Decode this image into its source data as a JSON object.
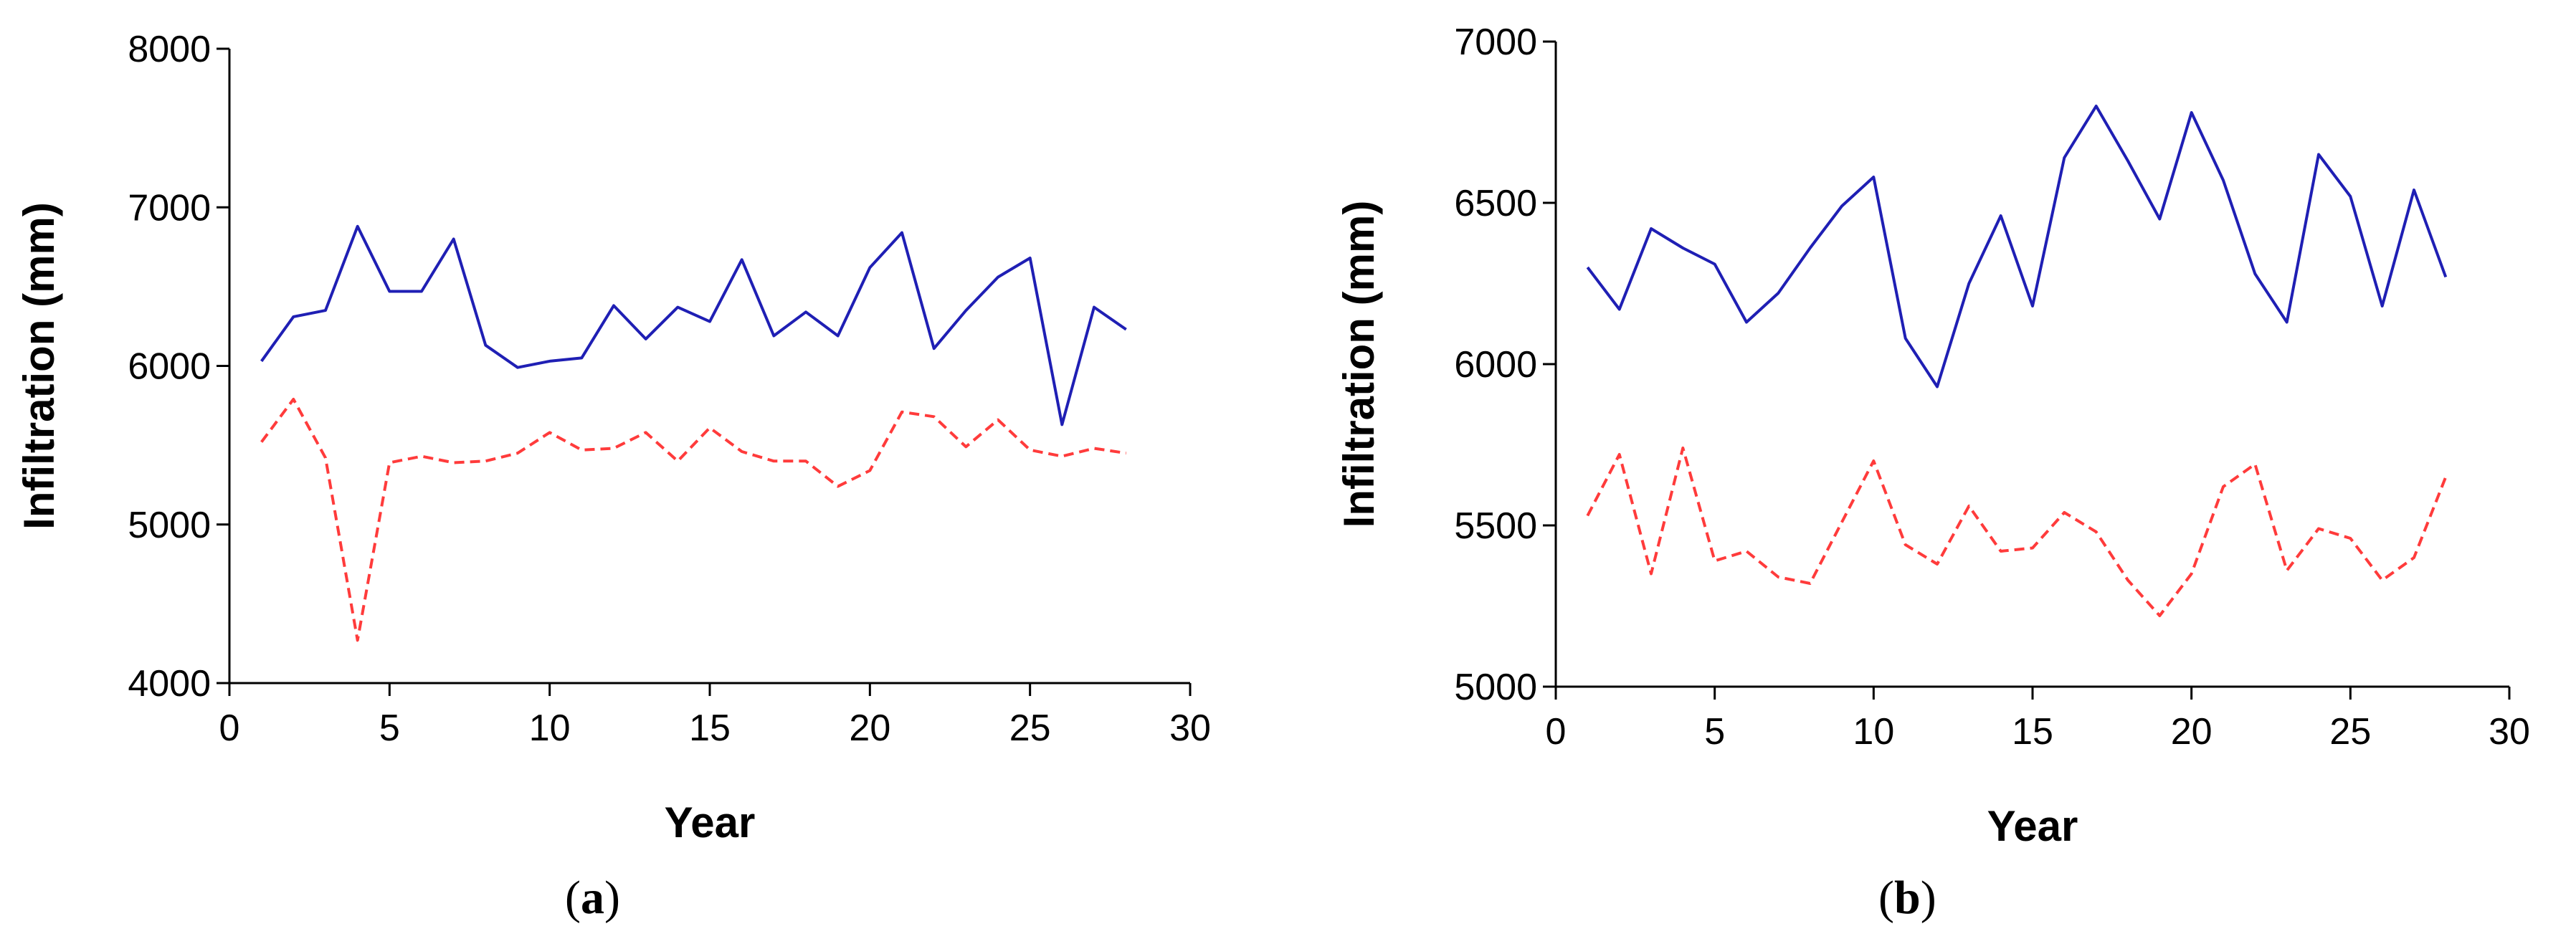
{
  "chart_data": [
    {
      "type": "line",
      "panel_label": "a",
      "xlabel": "Year",
      "ylabel": "Infiltration (mm)",
      "xlim": [
        0,
        30
      ],
      "ylim": [
        4000,
        8000
      ],
      "xticks": [
        0,
        5,
        10,
        15,
        20,
        25,
        30
      ],
      "yticks": [
        4000,
        5000,
        6000,
        7000,
        8000
      ],
      "grid": false,
      "x": [
        1,
        2,
        3,
        4,
        5,
        6,
        7,
        8,
        9,
        10,
        11,
        12,
        13,
        14,
        15,
        16,
        17,
        18,
        19,
        20,
        21,
        22,
        23,
        24,
        25,
        26,
        27,
        28
      ],
      "series": [
        {
          "color": "#1f1fb4",
          "style": "solid",
          "values": [
            6030,
            6310,
            6350,
            6880,
            6470,
            6470,
            6800,
            6130,
            5990,
            6030,
            6050,
            6380,
            6170,
            6370,
            6280,
            6670,
            6190,
            6340,
            6190,
            6620,
            6840,
            6110,
            6350,
            6560,
            6680,
            5630,
            6370,
            6230
          ]
        },
        {
          "color": "#ff3b3b",
          "style": "dashed",
          "values": [
            5520,
            5790,
            5420,
            4270,
            5390,
            5430,
            5390,
            5400,
            5450,
            5580,
            5470,
            5480,
            5580,
            5400,
            5610,
            5460,
            5400,
            5400,
            5240,
            5340,
            5710,
            5680,
            5490,
            5660,
            5470,
            5430,
            5480,
            5450
          ]
        }
      ]
    },
    {
      "type": "line",
      "panel_label": "b",
      "xlabel": "Year",
      "ylabel": "Infiltration (mm)",
      "xlim": [
        0,
        30
      ],
      "ylim": [
        5000,
        7000
      ],
      "xticks": [
        0,
        5,
        10,
        15,
        20,
        25,
        30
      ],
      "yticks": [
        5000,
        5500,
        6000,
        6500,
        7000
      ],
      "grid": false,
      "x": [
        1,
        2,
        3,
        4,
        5,
        6,
        7,
        8,
        9,
        10,
        11,
        12,
        13,
        14,
        15,
        16,
        17,
        18,
        19,
        20,
        21,
        22,
        23,
        24,
        25,
        26,
        27,
        28
      ],
      "series": [
        {
          "color": "#1f1fb4",
          "style": "solid",
          "values": [
            6300,
            6170,
            6420,
            6360,
            6310,
            6130,
            6220,
            6360,
            6490,
            6580,
            6080,
            5930,
            6250,
            6460,
            6180,
            6640,
            6800,
            6630,
            6450,
            6780,
            6570,
            6280,
            6130,
            6650,
            6520,
            6180,
            6540,
            6270
          ]
        },
        {
          "color": "#ff3b3b",
          "style": "dashed",
          "values": [
            5530,
            5720,
            5350,
            5740,
            5390,
            5420,
            5340,
            5320,
            5510,
            5700,
            5440,
            5380,
            5560,
            5420,
            5430,
            5540,
            5480,
            5330,
            5220,
            5350,
            5620,
            5690,
            5360,
            5490,
            5460,
            5330,
            5400,
            5650
          ]
        }
      ]
    }
  ]
}
